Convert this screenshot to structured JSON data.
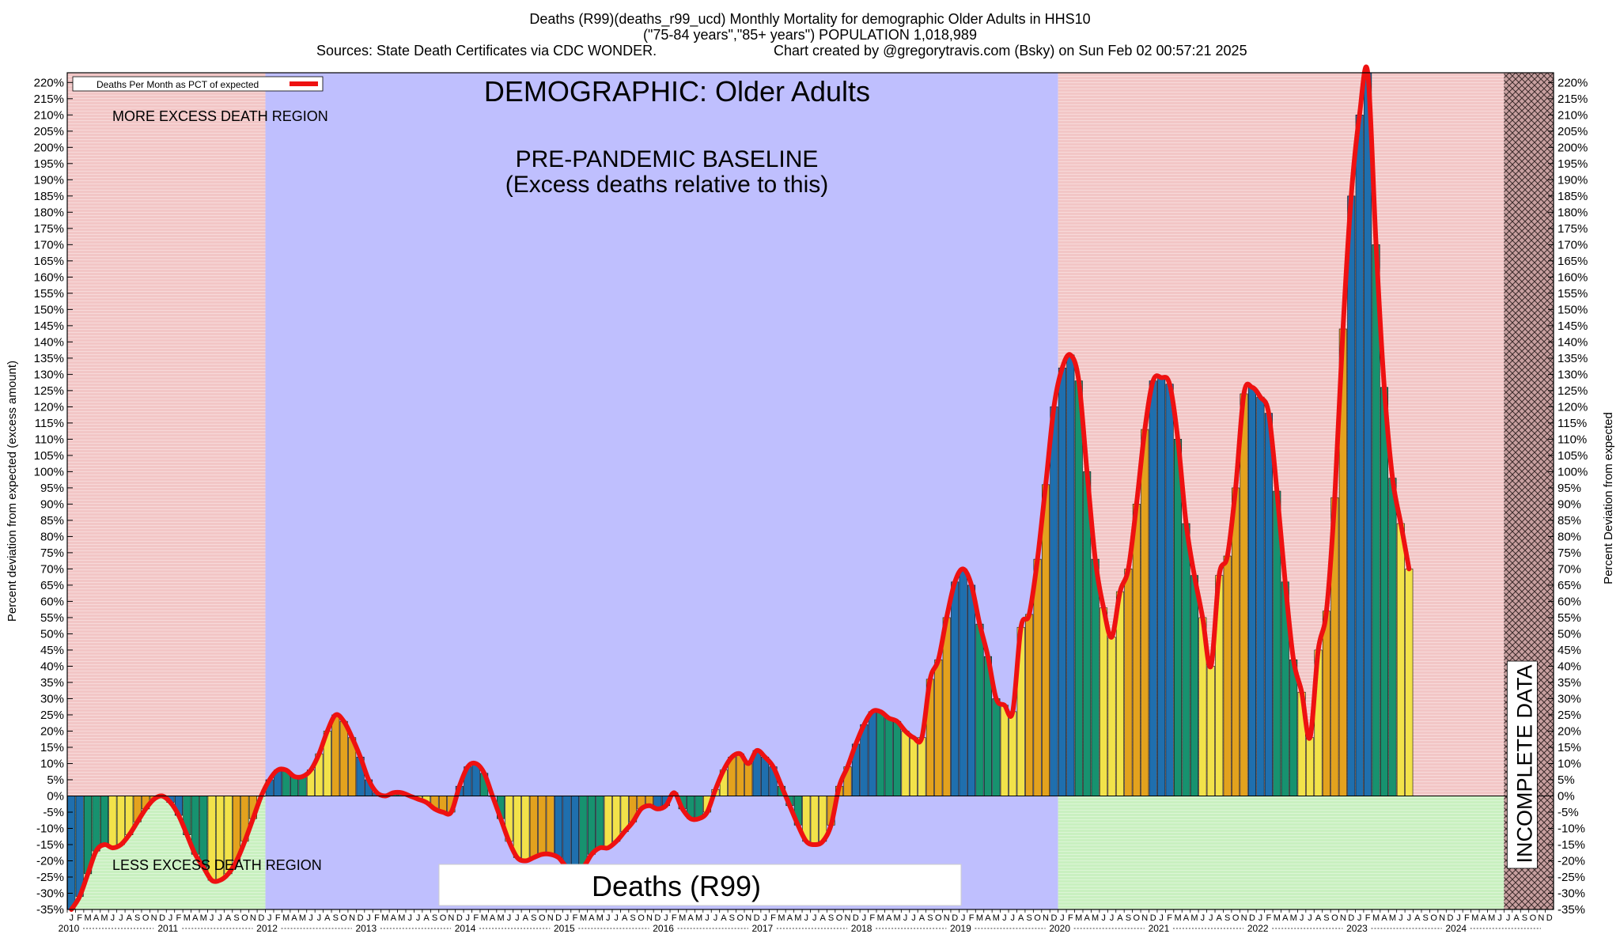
{
  "header": {
    "line1": "Deaths (R99)(deaths_r99_ucd) Monthly Mortality for demographic Older Adults in HHS10",
    "line2": "(\"75-84 years\",\"85+ years\") POPULATION 1,018,989",
    "line3_left": "Sources: State Death Certificates via CDC WONDER.",
    "line3_right": "Chart created by @gregorytravis.com (Bsky) on Sun Feb 02 00:57:21 2025"
  },
  "labels": {
    "demographic": "DEMOGRAPHIC: Older Adults",
    "baseline_line1": "PRE-PANDEMIC BASELINE",
    "baseline_line2": "(Excess deaths relative to this)",
    "more_region": "MORE EXCESS DEATH REGION",
    "less_region": "LESS EXCESS DEATH REGION",
    "cause_box": "Deaths (R99)",
    "incomplete": "INCOMPLETE DATA",
    "legend": "Deaths Per Month as PCT of expected",
    "ylabel_left": "Percent deviation from expected (excess amount)",
    "ylabel_right": "Percent Deviation from expected"
  },
  "colors": {
    "winter": "#1f6fae",
    "spring": "#17926f",
    "summer": "#f2e24a",
    "autumn": "#e3a21e",
    "line": "#ee1111",
    "baseline_bg": "#bfbffe",
    "excess_bg": "#f2c6c6",
    "less_bg": "#c9f0c0"
  },
  "chart_data": {
    "type": "bar",
    "title": "Deaths (R99)(deaths_r99_ucd) Monthly Mortality for demographic Older Adults in HHS10",
    "ylim": [
      -35,
      223
    ],
    "y_ticks": [
      -35,
      -30,
      -25,
      -20,
      -15,
      -10,
      -5,
      0,
      5,
      10,
      15,
      20,
      25,
      30,
      35,
      40,
      45,
      50,
      55,
      60,
      65,
      70,
      75,
      80,
      85,
      90,
      95,
      100,
      105,
      110,
      115,
      120,
      125,
      130,
      135,
      140,
      145,
      150,
      155,
      160,
      165,
      170,
      175,
      180,
      185,
      190,
      195,
      200,
      205,
      210,
      215,
      220
    ],
    "years": [
      "2010",
      "2011",
      "2012",
      "2013",
      "2014",
      "2015",
      "2016",
      "2017",
      "2018",
      "2019",
      "2020",
      "2021",
      "2022",
      "2023",
      "2024"
    ],
    "month_letters": [
      "J",
      "F",
      "M",
      "A",
      "M",
      "J",
      "J",
      "A",
      "S",
      "O",
      "N",
      "D"
    ],
    "baseline_period": [
      "2012-01",
      "2019-12"
    ],
    "incomplete_from": "2024-07",
    "series": [
      {
        "name": "Deaths Per Month as PCT of expected",
        "values": [
          -35,
          -31,
          -24,
          -17,
          -15,
          -16,
          -15,
          -12,
          -8,
          -4,
          -1,
          0,
          -2,
          -6,
          -12,
          -18,
          -22,
          -26,
          -26,
          -24,
          -20,
          -14,
          -7,
          0,
          5,
          8,
          8,
          6,
          6,
          8,
          13,
          20,
          25,
          23,
          18,
          12,
          5,
          1,
          0,
          1,
          1,
          0,
          -1,
          -2,
          -4,
          -5,
          -5,
          3,
          9,
          10,
          7,
          0,
          -7,
          -14,
          -19,
          -20,
          -19,
          -18,
          -18,
          -19,
          -22,
          -23,
          -22,
          -18,
          -16,
          -16,
          -14,
          -11,
          -8,
          -4,
          -3,
          -4,
          -3,
          1,
          -4,
          -7,
          -7,
          -5,
          2,
          8,
          12,
          13,
          10,
          14,
          12,
          9,
          3,
          -3,
          -9,
          -14,
          -15,
          -14,
          -9,
          3,
          9,
          16,
          22,
          26,
          26,
          24,
          23,
          20,
          18,
          18,
          36,
          42,
          55,
          66,
          70,
          65,
          53,
          43,
          30,
          28,
          26,
          52,
          56,
          73,
          96,
          120,
          132,
          136,
          128,
          100,
          73,
          58,
          49,
          63,
          70,
          90,
          113,
          128,
          129,
          127,
          110,
          84,
          68,
          55,
          40,
          68,
          74,
          95,
          124,
          126,
          123,
          118,
          94,
          66,
          42,
          32,
          18,
          45,
          57,
          92,
          144,
          185,
          210,
          223,
          170,
          126,
          98,
          84,
          70
        ]
      }
    ],
    "annotations": [
      "DEMOGRAPHIC: Older Adults",
      "PRE-PANDEMIC BASELINE",
      "(Excess deaths relative to this)",
      "MORE EXCESS DEATH REGION",
      "LESS EXCESS DEATH REGION",
      "INCOMPLETE DATA",
      "Deaths (R99)"
    ],
    "legend_position": "top-left",
    "grid": false
  }
}
